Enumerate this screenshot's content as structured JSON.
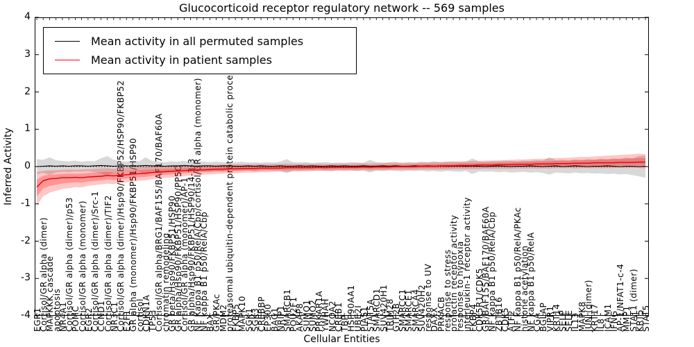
{
  "title": "Glucocorticoid receptor regulatory network -- 569 samples",
  "axes": {
    "ylabel": "Inferred Activity",
    "xlabel": "Cellular Entities",
    "ylim": [
      -4,
      4
    ],
    "yticks": [
      4,
      3,
      2,
      1,
      0,
      -1,
      -2,
      -3,
      -4
    ]
  },
  "legend": {
    "entries": [
      {
        "label": "Mean activity in all permuted samples",
        "color": "#000000"
      },
      {
        "label": "Mean activity in patient samples",
        "color": "#ff0000"
      }
    ]
  },
  "colors": {
    "permuted_line": "#000000",
    "patient_line": "#e60000",
    "permuted_band": "#999999",
    "patient_band": "#ff0000",
    "frame": "#000000"
  },
  "chart_data": {
    "type": "line",
    "title": "Glucocorticoid receptor regulatory network -- 569 samples",
    "xlabel": "Cellular Entities",
    "ylabel": "Inferred Activity",
    "ylim": [
      -4,
      4
    ],
    "grid": false,
    "legend_position": "upper left",
    "zero_line": true,
    "categories": [
      "EGR1",
      "Cortisol/GR alpha (dimer)",
      "MAPKKK cascade",
      "apoptosis",
      "NR4A1",
      "Cortisol/GR alpha (dimer)/p53",
      "POMC",
      "Cortisol/GR alpha (monomer)",
      "EGR2",
      "Cortisol/GR alpha (dimer)/Src-1",
      "CCND1",
      "Cortisol/GR alpha (dimer)/TIF2",
      "NR3C1",
      "Cortisol/GR alpha (dimer)/Hsp90/FKBP52/HSP90/FKBP52",
      "E2F1",
      "GR alpha (monomer)/Hsp90/FKBP51/HSP90",
      "cortisol",
      "CDKN1A",
      "TP53",
      "Cortisol/GR alpha/BRG1/BAF155/BAF170/BAF60A",
      "chromatin remodeling",
      "GR beta/Hsp90/FKBP51/HSP90",
      "GR alpha/Hsp90/FKBP51/HSP90/PP5C",
      "Cortisol/GR alpha (monomer)/AP-1",
      "GR alpha/Hsp90/FKBP51/HSP90/14-3-3",
      "NF Kappa B1 p50/RelA/Cbp/cortisol/GR alpha (monomer)",
      "NF kappa B1 p50/RelA/Cbp",
      "BAX",
      "GR/PKAc",
      "MDM2",
      "proteasomal ubiquitin-dependent protein catabolic process",
      "FKBP5",
      "MAPK10",
      "SGK1",
      "SGK3",
      "CREBBP",
      "EP300",
      "BAG1",
      "NRIP1",
      "SMARCB1",
      "POU2F1",
      "AKAP8",
      "SUMO1",
      "SUMO2",
      "PRKAR1A",
      "YWHAH",
      "NCOA2",
      "CREB1",
      "TBP",
      "HSP90AA1",
      "UBE2I",
      "PIAS1",
      "STAT5A",
      "SMARCD1",
      "SUV420H1",
      "TRIM28",
      "GTF2B",
      "SMARCC1",
      "SMARCE1",
      "SMARCA4",
      "SUV420H2",
      "response to UV",
      "DAXX",
      "PRKACB",
      "response to stress",
      "prolactin receptor activity",
      "response to hypoxia",
      "interleukin-1 receptor activity",
      "FKBP4",
      "CDK5R1/CDK5",
      "GR/BAF155/BAF170/BAF60A",
      "NF kappa B1 p50/RelA/Cbp",
      "ZBTB16",
      "CDK5",
      "ATF2",
      "NF kappa B1 p50/RelA/PKAc",
      "histone acetylation",
      "NF kappa B1 p50/RelA",
      "CGA",
      "BGLAP",
      "VIPR1",
      "KRT14",
      "SELP",
      "SELE",
      "IL13",
      "MAPK8",
      "JUN (dimer)",
      "KRT17",
      "IL8",
      "ICAM1",
      "IFNG",
      "AP-1/NFAT1-c-4",
      "MMP1",
      "STAT1 (dimer)",
      "KRT5",
      "STAT5"
    ],
    "series": [
      {
        "name": "Mean activity in all permuted samples",
        "color": "#000000",
        "values": [
          0.0,
          0.01,
          0.02,
          0.01,
          0.02,
          0.01,
          0.02,
          0.02,
          0.01,
          0.02,
          0.03,
          0.02,
          0.01,
          0.02,
          0.02,
          0.01,
          0.02,
          0.03,
          0.02,
          0.02,
          0.01,
          0.02,
          0.02,
          0.03,
          0.02,
          0.01,
          0.02,
          0.02,
          0.01,
          0.02,
          0.02,
          0.01,
          0.01,
          0.02,
          0.01,
          0.02,
          0.01,
          0.01,
          0.02,
          0.01,
          0.01,
          0.02,
          0.01,
          0.02,
          0.01,
          0.01,
          0.02,
          0.01,
          0.02,
          0.01,
          0.01,
          0.02,
          0.01,
          0.01,
          0.02,
          0.01,
          0.02,
          0.01,
          0.01,
          0.02,
          0.01,
          0.02,
          0.01,
          0.02,
          0.01,
          0.01,
          0.02,
          0.01,
          0.02,
          0.01,
          0.0,
          0.01,
          0.02,
          0.01,
          0.0,
          0.01,
          0.01,
          0.02,
          0.01,
          0.0,
          0.01,
          0.02,
          0.0,
          0.01,
          0.02,
          0.01,
          0.0,
          0.01,
          0.01,
          0.02,
          0.01,
          0.0,
          0.01,
          0.01,
          0.0,
          0.01
        ],
        "band_upper": [
          0.2,
          0.18,
          0.25,
          0.17,
          0.15,
          0.14,
          0.16,
          0.13,
          0.15,
          0.14,
          0.22,
          0.28,
          0.18,
          0.15,
          0.13,
          0.16,
          0.14,
          0.25,
          0.15,
          0.13,
          0.12,
          0.14,
          0.13,
          0.15,
          0.12,
          0.13,
          0.14,
          0.12,
          0.13,
          0.12,
          0.11,
          0.12,
          0.13,
          0.11,
          0.12,
          0.1,
          0.12,
          0.11,
          0.13,
          0.2,
          0.12,
          0.11,
          0.12,
          0.1,
          0.11,
          0.12,
          0.1,
          0.11,
          0.1,
          0.12,
          0.11,
          0.1,
          0.18,
          0.12,
          0.11,
          0.12,
          0.13,
          0.11,
          0.12,
          0.11,
          0.13,
          0.12,
          0.14,
          0.12,
          0.13,
          0.14,
          0.12,
          0.13,
          0.22,
          0.14,
          0.13,
          0.15,
          0.14,
          0.16,
          0.15,
          0.14,
          0.16,
          0.15,
          0.17,
          0.16,
          0.25,
          0.17,
          0.18,
          0.16,
          0.19,
          0.17,
          0.2,
          0.18,
          0.21,
          0.19,
          0.22,
          0.2,
          0.24,
          0.22,
          0.28,
          0.3
        ],
        "band_lower": [
          -0.2,
          -0.17,
          -0.22,
          -0.16,
          -0.14,
          -0.15,
          -0.13,
          -0.14,
          -0.12,
          -0.15,
          -0.18,
          -0.25,
          -0.16,
          -0.14,
          -0.12,
          -0.15,
          -0.13,
          -0.22,
          -0.14,
          -0.12,
          -0.13,
          -0.12,
          -0.14,
          -0.13,
          -0.12,
          -0.14,
          -0.12,
          -0.13,
          -0.11,
          -0.13,
          -0.12,
          -0.11,
          -0.12,
          -0.1,
          -0.13,
          -0.11,
          -0.1,
          -0.12,
          -0.11,
          -0.18,
          -0.11,
          -0.12,
          -0.1,
          -0.11,
          -0.1,
          -0.11,
          -0.12,
          -0.1,
          -0.11,
          -0.1,
          -0.12,
          -0.11,
          -0.16,
          -0.11,
          -0.12,
          -0.1,
          -0.12,
          -0.13,
          -0.11,
          -0.12,
          -0.11,
          -0.13,
          -0.12,
          -0.14,
          -0.12,
          -0.13,
          -0.14,
          -0.12,
          -0.2,
          -0.13,
          -0.14,
          -0.13,
          -0.15,
          -0.14,
          -0.16,
          -0.15,
          -0.14,
          -0.16,
          -0.15,
          -0.17,
          -0.22,
          -0.16,
          -0.17,
          -0.18,
          -0.16,
          -0.18,
          -0.17,
          -0.19,
          -0.18,
          -0.2,
          -0.19,
          -0.21,
          -0.2,
          -0.23,
          -0.26,
          -0.3
        ]
      },
      {
        "name": "Mean activity in patient samples",
        "color": "#e60000",
        "values": [
          -0.55,
          -0.38,
          -0.33,
          -0.32,
          -0.3,
          -0.3,
          -0.29,
          -0.3,
          -0.28,
          -0.27,
          -0.26,
          -0.24,
          -0.25,
          -0.23,
          -0.22,
          -0.2,
          -0.19,
          -0.18,
          -0.16,
          -0.15,
          -0.14,
          -0.13,
          -0.12,
          -0.11,
          -0.1,
          -0.09,
          -0.09,
          -0.08,
          -0.07,
          -0.07,
          -0.06,
          -0.06,
          -0.05,
          -0.05,
          -0.05,
          -0.04,
          -0.04,
          -0.04,
          -0.04,
          -0.03,
          -0.03,
          -0.03,
          -0.03,
          -0.03,
          -0.02,
          -0.03,
          -0.02,
          -0.02,
          -0.02,
          -0.02,
          -0.02,
          -0.01,
          -0.02,
          -0.01,
          -0.01,
          -0.01,
          0.0,
          0.0,
          0.0,
          0.0,
          0.01,
          0.01,
          0.01,
          0.02,
          0.02,
          0.02,
          0.03,
          0.03,
          0.03,
          0.04,
          0.04,
          0.04,
          0.05,
          0.05,
          0.05,
          0.06,
          0.06,
          0.06,
          0.07,
          0.07,
          0.07,
          0.08,
          0.08,
          0.08,
          0.09,
          0.09,
          0.09,
          0.1,
          0.1,
          0.1,
          0.1,
          0.11,
          0.11,
          0.11,
          0.12,
          0.12
        ],
        "band_upper": [
          -0.15,
          -0.12,
          -0.1,
          -0.1,
          -0.09,
          -0.08,
          -0.09,
          -0.08,
          -0.07,
          -0.06,
          -0.05,
          -0.04,
          -0.06,
          -0.03,
          -0.02,
          -0.02,
          -0.01,
          0.0,
          0.0,
          0.01,
          0.01,
          0.02,
          0.02,
          0.03,
          0.03,
          0.04,
          0.04,
          0.04,
          0.05,
          0.05,
          0.05,
          0.06,
          0.06,
          0.06,
          0.06,
          0.07,
          0.06,
          0.07,
          0.07,
          0.08,
          0.07,
          0.07,
          0.08,
          0.07,
          0.08,
          0.07,
          0.08,
          0.08,
          0.08,
          0.08,
          0.09,
          0.09,
          0.08,
          0.09,
          0.09,
          0.1,
          0.1,
          0.09,
          0.1,
          0.1,
          0.11,
          0.11,
          0.12,
          0.12,
          0.13,
          0.13,
          0.14,
          0.14,
          0.15,
          0.15,
          0.16,
          0.16,
          0.17,
          0.17,
          0.18,
          0.19,
          0.19,
          0.2,
          0.21,
          0.21,
          0.22,
          0.23,
          0.23,
          0.24,
          0.25,
          0.26,
          0.26,
          0.27,
          0.28,
          0.29,
          0.3,
          0.31,
          0.32,
          0.33,
          0.35,
          0.33
        ],
        "band_lower": [
          -1.05,
          -0.8,
          -0.7,
          -0.65,
          -0.6,
          -0.58,
          -0.55,
          -0.56,
          -0.52,
          -0.5,
          -0.48,
          -0.46,
          -0.47,
          -0.44,
          -0.42,
          -0.4,
          -0.38,
          -0.37,
          -0.34,
          -0.32,
          -0.3,
          -0.29,
          -0.27,
          -0.26,
          -0.24,
          -0.23,
          -0.22,
          -0.21,
          -0.2,
          -0.19,
          -0.18,
          -0.18,
          -0.17,
          -0.16,
          -0.16,
          -0.15,
          -0.15,
          -0.14,
          -0.14,
          -0.14,
          -0.13,
          -0.13,
          -0.13,
          -0.12,
          -0.12,
          -0.12,
          -0.12,
          -0.11,
          -0.11,
          -0.11,
          -0.11,
          -0.1,
          -0.11,
          -0.1,
          -0.1,
          -0.1,
          -0.09,
          -0.09,
          -0.09,
          -0.09,
          -0.08,
          -0.08,
          -0.08,
          -0.08,
          -0.08,
          -0.07,
          -0.07,
          -0.07,
          -0.07,
          -0.07,
          -0.06,
          -0.06,
          -0.06,
          -0.06,
          -0.06,
          -0.05,
          -0.05,
          -0.05,
          -0.05,
          -0.05,
          -0.05,
          -0.04,
          -0.04,
          -0.04,
          -0.05,
          -0.04,
          -0.04,
          -0.04,
          -0.04,
          -0.04,
          -0.04,
          -0.03,
          -0.04,
          -0.03,
          -0.04,
          -0.05
        ]
      }
    ]
  }
}
